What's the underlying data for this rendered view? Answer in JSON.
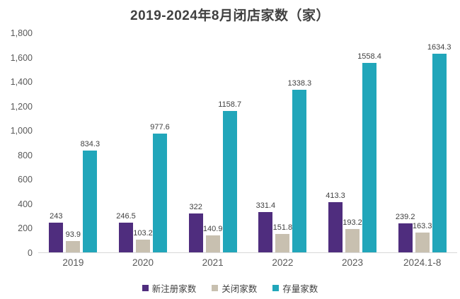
{
  "title": "2019-2024年8月闭店家数（家）",
  "colors": {
    "background": "#FFFFFF",
    "title_text": "#404040",
    "axis_label": "#595959",
    "value_label": "#404040",
    "axis_line": "#D9D9D9",
    "series_purple": "#4F2D7E",
    "series_tan": "#C8C0B0",
    "series_teal": "#21A6BA"
  },
  "chart_data": {
    "type": "bar",
    "title": "2019-2024年8月闭店家数（家）",
    "categories": [
      "2019",
      "2020",
      "2021",
      "2022",
      "2023",
      "2024.1-8"
    ],
    "series": [
      {
        "name": "新注册家数",
        "color": "#4F2D7E",
        "values": [
          243,
          246.5,
          322,
          331.4,
          413.3,
          239.2
        ],
        "labels": [
          "243",
          "246.5",
          "322",
          "331.4",
          "413.3",
          "239.2"
        ]
      },
      {
        "name": "关闭家数",
        "color": "#C8C0B0",
        "values": [
          93.9,
          103.2,
          140.9,
          151.8,
          193.2,
          163.3
        ],
        "labels": [
          "93.9",
          "103.2",
          "140.9",
          "151.8",
          "193.2",
          "163.3"
        ]
      },
      {
        "name": "存量家数",
        "color": "#21A6BA",
        "values": [
          834.3,
          977.6,
          1158.7,
          1338.3,
          1558.4,
          1634.3
        ],
        "labels": [
          "834.3",
          "977.6",
          "1158.7",
          "1338.3",
          "1558.4",
          "1634.3"
        ]
      }
    ],
    "xlabel": "",
    "ylabel": "",
    "ylim": [
      0,
      1800
    ],
    "yticks": [
      {
        "value": 0,
        "label": "0"
      },
      {
        "value": 200,
        "label": "200"
      },
      {
        "value": 400,
        "label": "400"
      },
      {
        "value": 600,
        "label": "600"
      },
      {
        "value": 800,
        "label": "800"
      },
      {
        "value": 1000,
        "label": "1,000"
      },
      {
        "value": 1200,
        "label": "1,200"
      },
      {
        "value": 1400,
        "label": "1,400"
      },
      {
        "value": 1600,
        "label": "1,600"
      },
      {
        "value": 1800,
        "label": "1,800"
      }
    ],
    "grid": false,
    "data_labels": true,
    "legend_position": "bottom"
  }
}
